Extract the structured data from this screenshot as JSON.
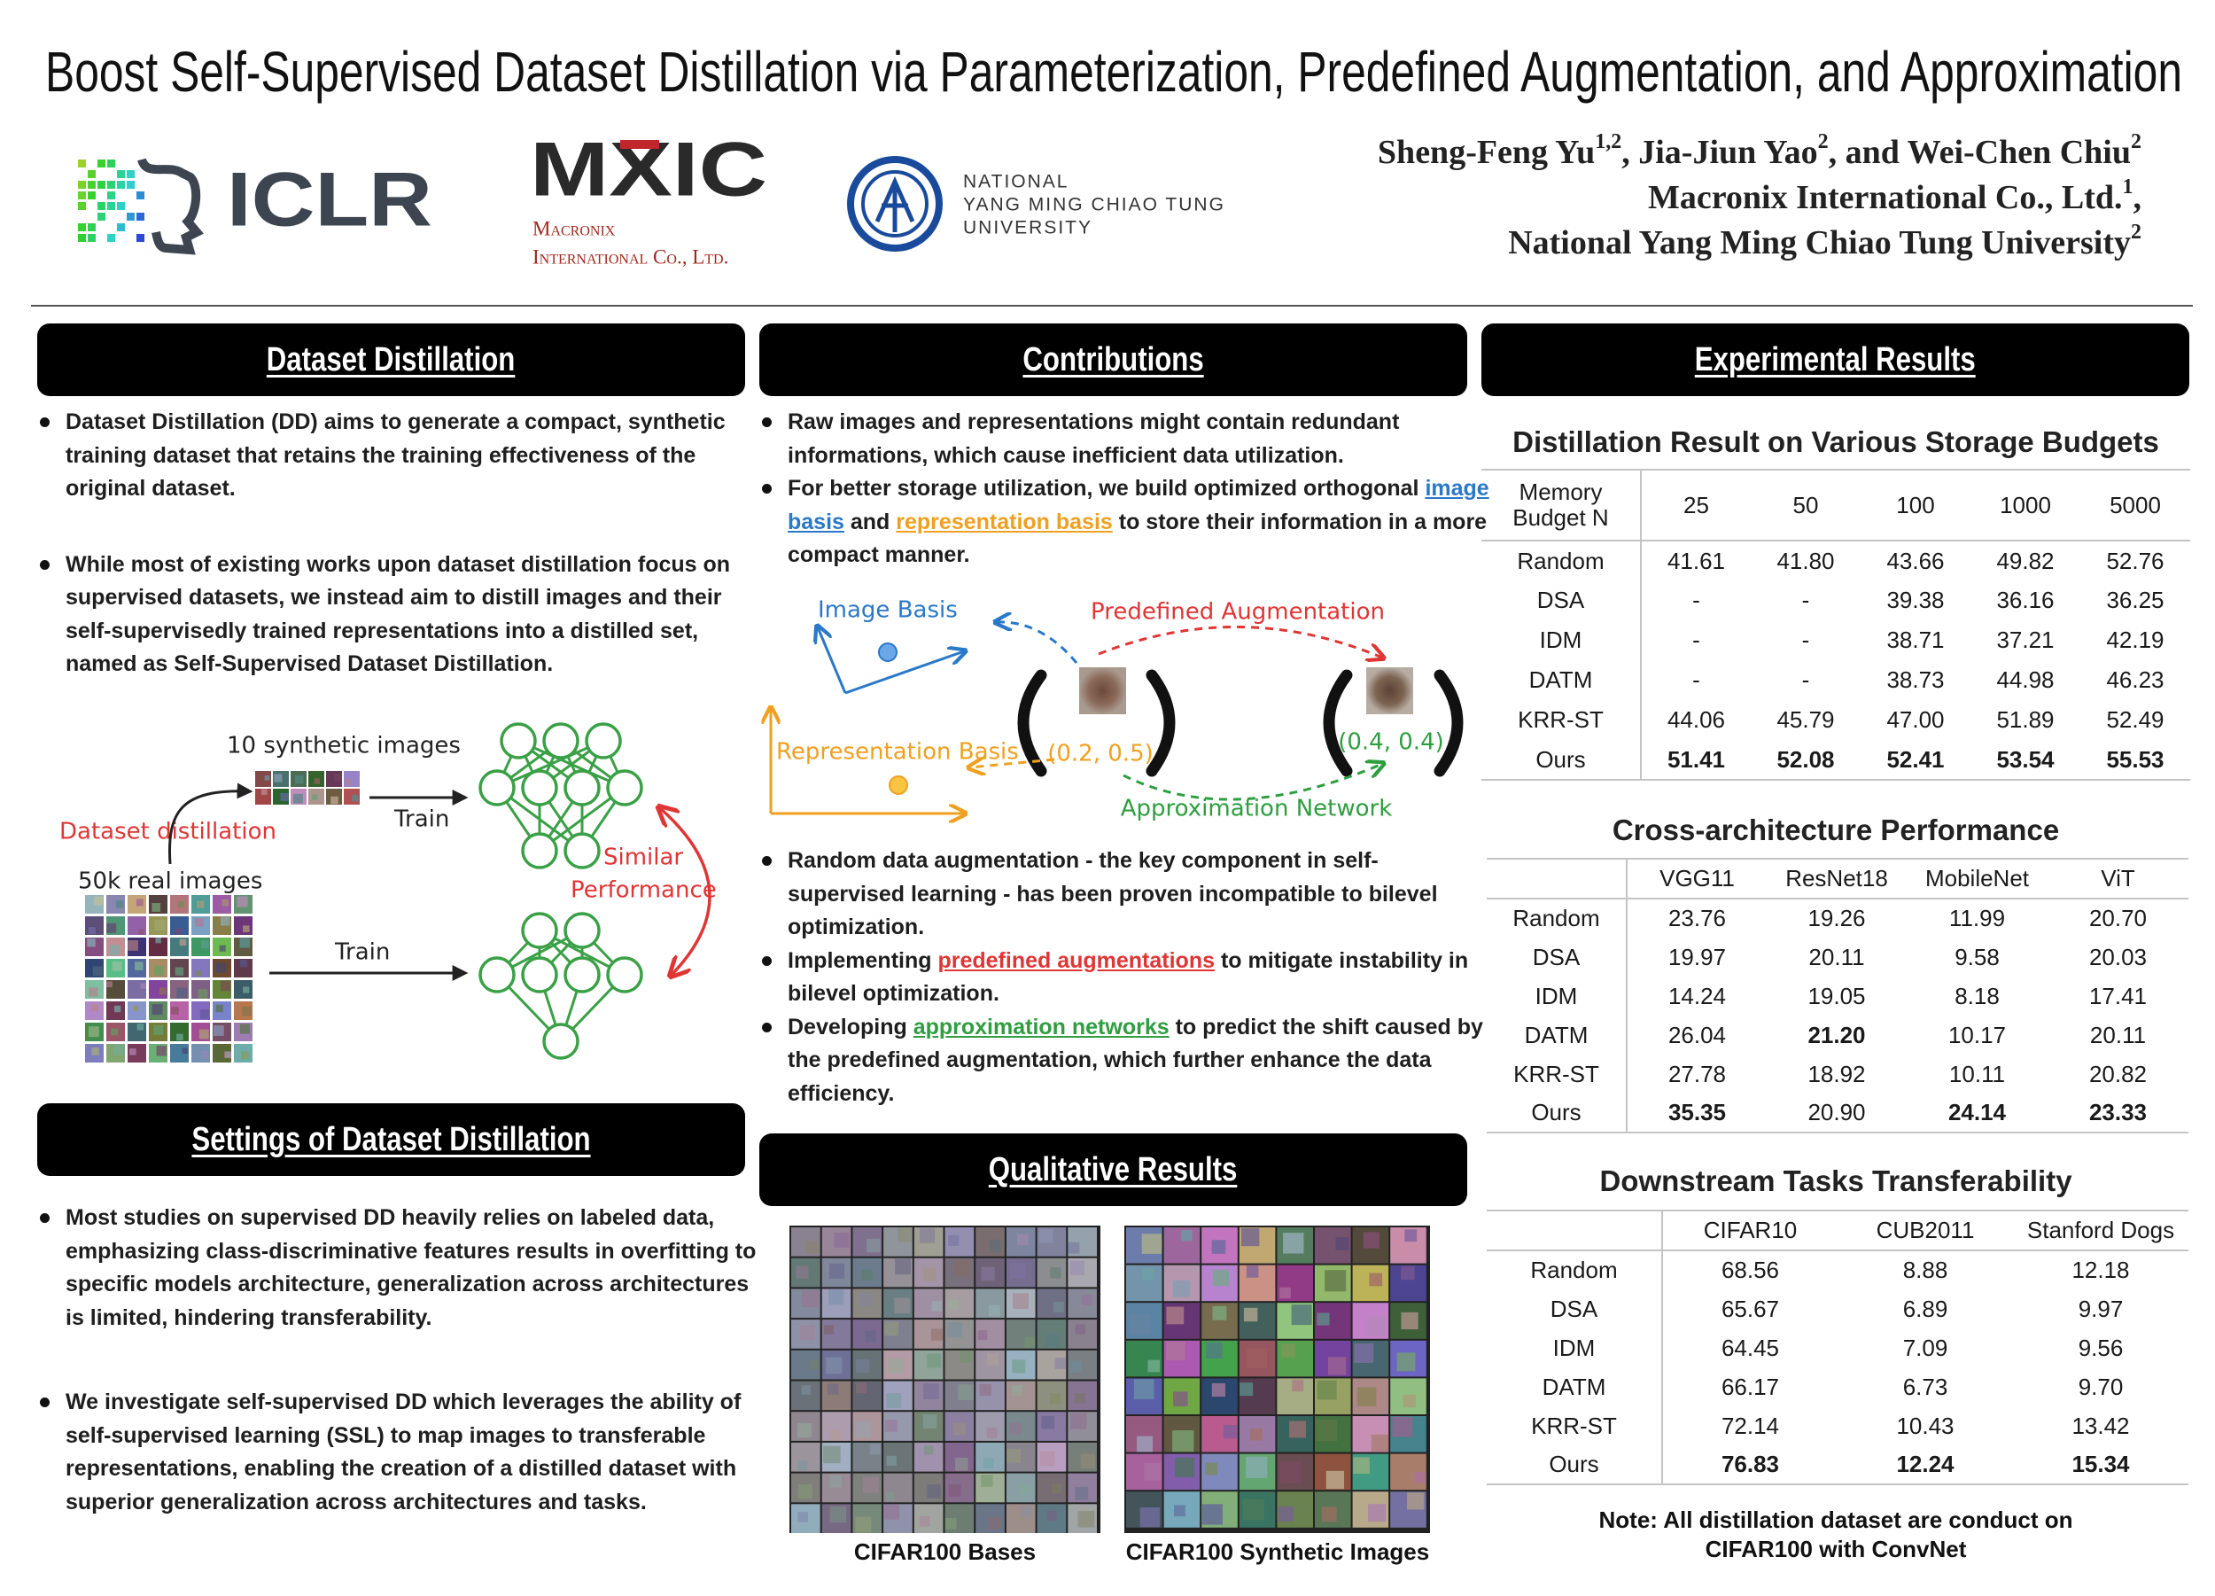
{
  "header": {
    "title": "Boost Self-Supervised Dataset Distillation via Parameterization, Predefined Augmentation, and Approximation",
    "author_lines": [
      [
        "Sheng-Feng Yu",
        "1,2",
        ", Jia-Jiun Yao",
        "2",
        ", and Wei-Chen Chiu",
        "2"
      ],
      [
        "Macronix International Co., Ltd.",
        "1",
        ","
      ],
      [
        "National Yang Ming Chiao Tung University",
        "2"
      ]
    ]
  },
  "logos": {
    "iclr": "ICLR",
    "mxic": "MXIC",
    "mxic_name": [
      "Macronix",
      "International Co., Ltd."
    ],
    "nycu": [
      "NATIONAL",
      "YANG MING CHIAO TUNG",
      "UNIVERSITY"
    ]
  },
  "dataset_distillation": {
    "heading": "Dataset Distillation",
    "bullets": [
      "Dataset Distillation (DD) aims to generate a compact, synthetic training dataset that retains the training effectiveness of the original dataset.",
      "While most of existing works upon dataset distillation focus on supervised datasets, we instead aim to distill images and their self-supervisedly trained representations into a distilled set, named as Self-Supervised Dataset Distillation."
    ],
    "figure": {
      "synthetic": "10 synthetic images",
      "distill": "Dataset distillation",
      "train": "Train",
      "real": "50k real images",
      "train2": "Train",
      "similar": [
        "Similar",
        "Performance"
      ]
    }
  },
  "settings": {
    "heading": "Settings of Dataset Distillation",
    "bullets": [
      "Most studies on supervised DD heavily relies on labeled data, emphasizing class-discriminative features results in overfitting to specific models architecture, generalization across architectures is limited, hindering transferability.",
      "We investigate self-supervised DD which leverages the ability of self-supervised learning (SSL) to map images to transferable representations, enabling the creation of a distilled dataset with superior generalization across architectures and tasks."
    ]
  },
  "contributions": {
    "heading": "Contributions",
    "bullets": [
      [
        "Raw images and representations might contain redundant informations, which cause inefficient data utilization."
      ],
      [
        "For better storage utilization, we build optimized orthogonal ",
        "image basis",
        " and ",
        "representation basis",
        " to store their information in a more compact manner."
      ],
      [
        "Random data augmentation - the key component in self-supervised learning - has been proven incompatible to bilevel optimization."
      ],
      [
        "Implementing ",
        "predefined augmentations",
        " to mitigate instability in bilevel optimization."
      ],
      [
        "Developing ",
        "approximation networks",
        " to predict the shift caused by the predefined augmentation, which further enhance the data efficiency."
      ]
    ],
    "figure": {
      "image_basis": "Image Basis",
      "augmentation": "Predefined Augmentation",
      "representation_basis": "Representation Basis",
      "coord1": "(0.2, 0.5)",
      "coord2": "(0.4, 0.4)",
      "approximation": "Approximation Network"
    }
  },
  "qualitative": {
    "heading": "Qualitative Results",
    "captions": [
      "CIFAR100 Bases",
      "CIFAR100 Synthetic Images"
    ]
  },
  "experimental": {
    "heading": "Experimental Results",
    "tables": [
      {
        "title": "Distillation Result on Various Storage Budgets",
        "header": [
          "Memory Budget N",
          "25",
          "50",
          "100",
          "1000",
          "5000"
        ],
        "rows": [
          [
            "Random",
            "41.61",
            "41.80",
            "43.66",
            "49.82",
            "52.76"
          ],
          [
            "DSA",
            "-",
            "-",
            "39.38",
            "36.16",
            "36.25"
          ],
          [
            "IDM",
            "-",
            "-",
            "38.71",
            "37.21",
            "42.19"
          ],
          [
            "DATM",
            "-",
            "-",
            "38.73",
            "44.98",
            "46.23"
          ],
          [
            "KRR-ST",
            "44.06",
            "45.79",
            "47.00",
            "51.89",
            "52.49"
          ],
          [
            "Ours",
            "51.41",
            "52.08",
            "52.41",
            "53.54",
            "55.53"
          ]
        ]
      },
      {
        "title": "Cross-architecture Performance",
        "header": [
          "VGG11",
          "ResNet18",
          "MobileNet",
          "ViT"
        ],
        "rows": [
          [
            "Random",
            "23.76",
            "19.26",
            "11.99",
            "20.70"
          ],
          [
            "DSA",
            "19.97",
            "20.11",
            "9.58",
            "20.03"
          ],
          [
            "IDM",
            "14.24",
            "19.05",
            "8.18",
            "17.41"
          ],
          [
            "DATM",
            "26.04",
            "21.20",
            "10.17",
            "20.11"
          ],
          [
            "KRR-ST",
            "27.78",
            "18.92",
            "10.11",
            "20.82"
          ],
          [
            "Ours",
            "35.35",
            "20.90",
            "24.14",
            "23.33"
          ]
        ]
      },
      {
        "title": "Downstream Tasks Transferability",
        "header": [
          "CIFAR10",
          "CUB2011",
          "Stanford Dogs"
        ],
        "rows": [
          [
            "Random",
            "68.56",
            "8.88",
            "12.18"
          ],
          [
            "DSA",
            "65.67",
            "6.89",
            "9.97"
          ],
          [
            "IDM",
            "64.45",
            "7.09",
            "9.56"
          ],
          [
            "DATM",
            "66.17",
            "6.73",
            "9.70"
          ],
          [
            "KRR-ST",
            "72.14",
            "10.43",
            "13.42"
          ],
          [
            "Ours",
            "76.83",
            "12.24",
            "15.34"
          ]
        ]
      }
    ],
    "note": [
      "Note: All distillation dataset are conduct on",
      "CIFAR100 with ConvNet"
    ]
  }
}
